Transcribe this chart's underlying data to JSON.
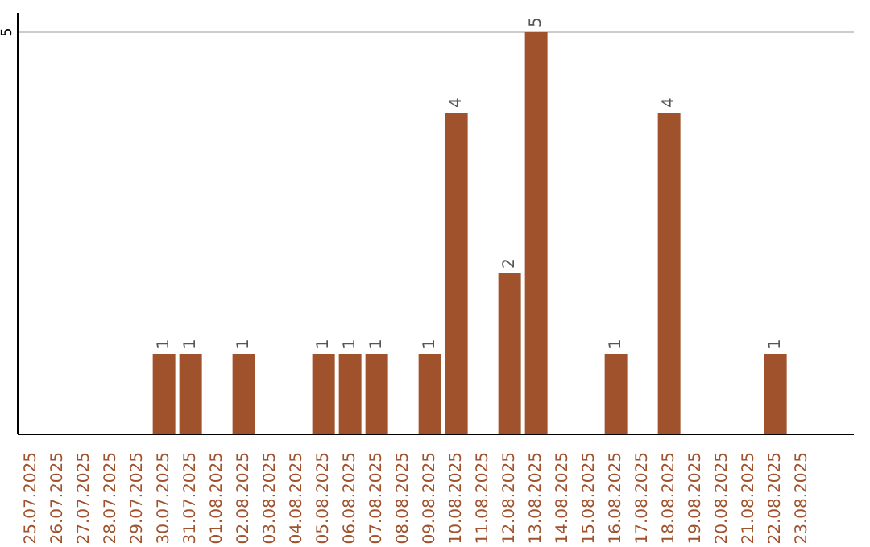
{
  "chart_data": {
    "type": "bar",
    "categories": [
      "25.07.2025",
      "26.07.2025",
      "27.07.2025",
      "28.07.2025",
      "29.07.2025",
      "30.07.2025",
      "31.07.2025",
      "01.08.2025",
      "02.08.2025",
      "03.08.2025",
      "04.08.2025",
      "05.08.2025",
      "06.08.2025",
      "07.08.2025",
      "08.08.2025",
      "09.08.2025",
      "10.08.2025",
      "11.08.2025",
      "12.08.2025",
      "13.08.2025",
      "14.08.2025",
      "15.08.2025",
      "16.08.2025",
      "17.08.2025",
      "18.08.2025",
      "19.08.2025",
      "20.08.2025",
      "21.08.2025",
      "22.08.2025",
      "23.08.2025"
    ],
    "values": [
      0,
      0,
      0,
      0,
      0,
      1,
      1,
      0,
      1,
      0,
      0,
      1,
      1,
      1,
      0,
      1,
      4,
      0,
      2,
      5,
      0,
      0,
      1,
      0,
      4,
      0,
      0,
      0,
      1,
      0
    ],
    "value_labels": [
      null,
      null,
      null,
      null,
      null,
      "1",
      "1",
      null,
      "1",
      null,
      null,
      "1",
      "1",
      "1",
      null,
      "1",
      "4",
      null,
      "2",
      "5",
      null,
      null,
      "1",
      null,
      "4",
      null,
      null,
      null,
      "1",
      null
    ],
    "color": "#a0522d",
    "ylim": [
      0,
      5.24
    ],
    "yticks": [
      5
    ],
    "grid": "y"
  }
}
